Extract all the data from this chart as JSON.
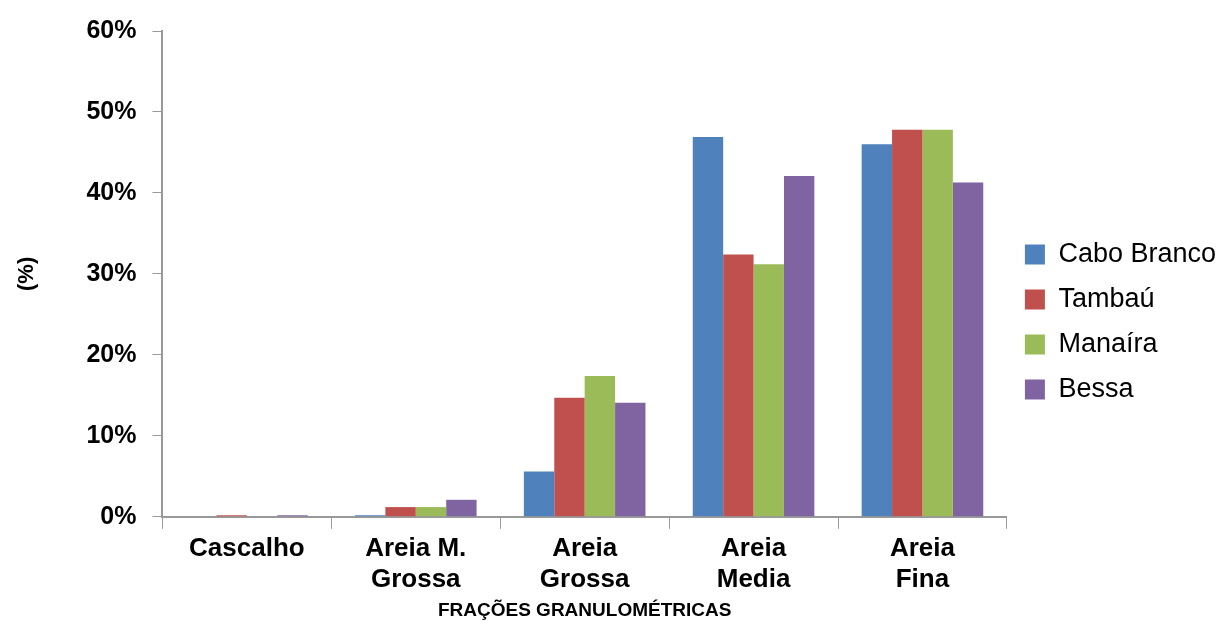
{
  "chart_data": {
    "type": "bar",
    "xlabel": "FRAÇÕES GRANULOMÉTRICAS",
    "ylabel": "(%)",
    "categories": [
      "Cascalho",
      "Areia M. Grossa",
      "Areia Grossa",
      "Areia Media",
      "Areia Fina"
    ],
    "series": [
      {
        "name": "Cabo Branco",
        "color": "#4f81bd",
        "values": [
          0,
          0.2,
          5.6,
          46.9,
          46.0
        ]
      },
      {
        "name": "Tambaú",
        "color": "#c0504d",
        "values": [
          0.2,
          1.2,
          14.7,
          32.4,
          47.8
        ]
      },
      {
        "name": "Manaíra",
        "color": "#9bbb59",
        "values": [
          0,
          1.2,
          17.4,
          31.2,
          47.8
        ]
      },
      {
        "name": "Bessa",
        "color": "#8064a2",
        "values": [
          0.2,
          2.1,
          14.1,
          42.1,
          41.3
        ]
      }
    ],
    "ylim": [
      0,
      60
    ],
    "yticks": [
      {
        "value": 0,
        "label": "0%"
      },
      {
        "value": 10,
        "label": "10%"
      },
      {
        "value": 20,
        "label": "20%"
      },
      {
        "value": 30,
        "label": "30%"
      },
      {
        "value": 40,
        "label": "40%"
      },
      {
        "value": 50,
        "label": "50%"
      },
      {
        "value": 60,
        "label": "60%"
      }
    ],
    "grid": false,
    "legend": "right"
  }
}
